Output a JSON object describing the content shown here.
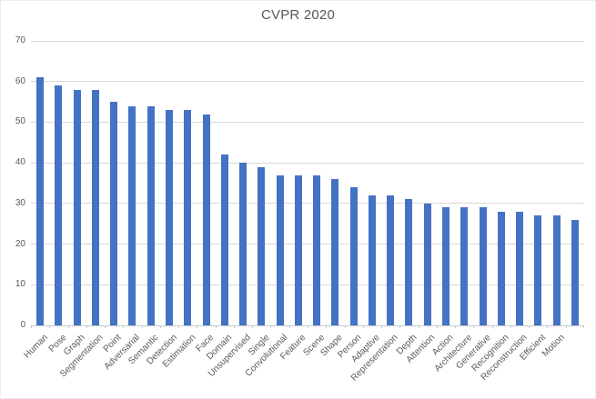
{
  "chart_data": {
    "type": "bar",
    "title": "CVPR 2020",
    "categories": [
      "Human",
      "Pose",
      "Graph",
      "Segmentation",
      "Point",
      "Adversarial",
      "Semantic",
      "Detection",
      "Estimation",
      "Face",
      "Domain",
      "Unsupervised",
      "Single",
      "Convolutional",
      "Feature",
      "Scene",
      "Shape",
      "Person",
      "Adaptive",
      "Representation",
      "Depth",
      "Attention",
      "Action",
      "Architecture",
      "Generative",
      "Recognition",
      "Reconstruction",
      "Efficient",
      "Motion",
      ""
    ],
    "values": [
      61,
      59,
      58,
      58,
      55,
      54,
      54,
      53,
      53,
      52,
      42,
      40,
      39,
      37,
      37,
      37,
      36,
      34,
      32,
      32,
      31,
      30,
      29,
      29,
      29,
      28,
      28,
      27,
      27,
      26
    ],
    "xlabel": "",
    "ylabel": "",
    "ylim": [
      0,
      70
    ],
    "yticks": [
      0,
      10,
      20,
      30,
      40,
      50,
      60,
      70
    ],
    "grid": true,
    "legend_position": "none",
    "colors": {
      "bar": "#4472C4",
      "gridline": "#D9D9D9",
      "axis_line": "#C8C8C8",
      "tick": "#C8C8C8",
      "axis_label": "#595959",
      "title": "#595959",
      "background": "#FFFFFF"
    }
  }
}
